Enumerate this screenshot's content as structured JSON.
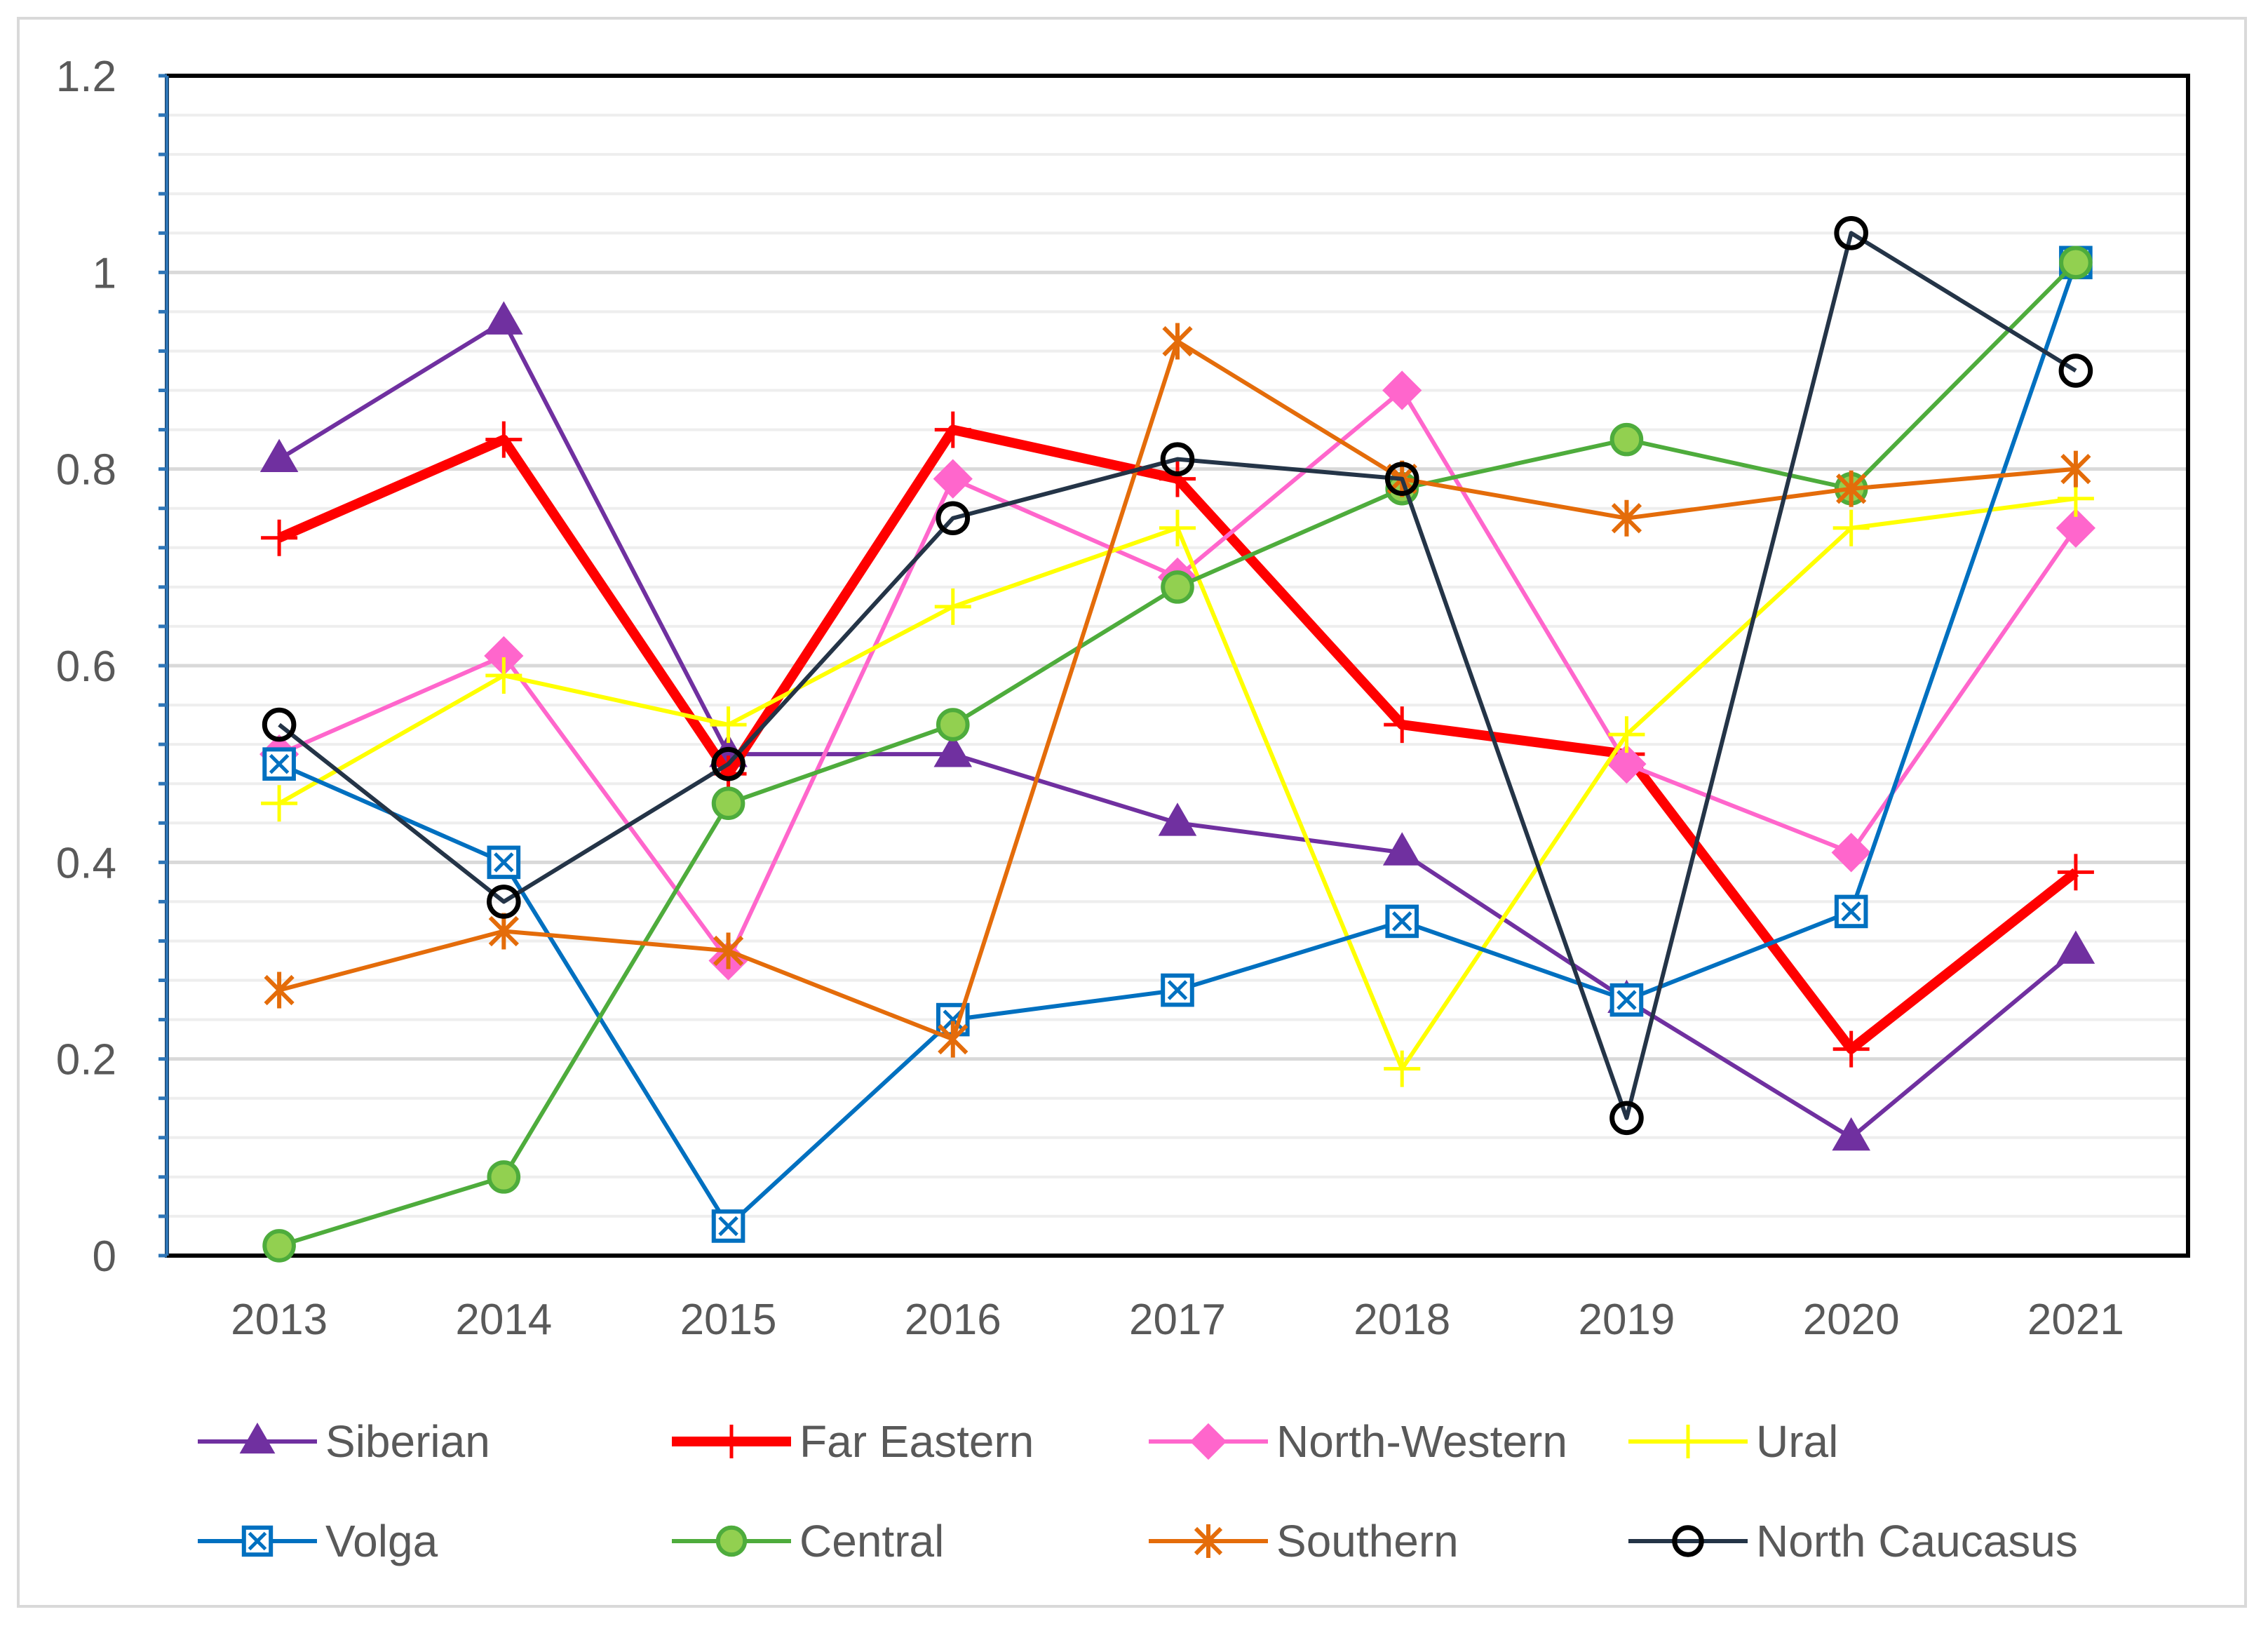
{
  "chart_data": {
    "type": "line",
    "title": "",
    "xlabel": "",
    "ylabel": "",
    "x": [
      "2013",
      "2014",
      "2015",
      "2016",
      "2017",
      "2018",
      "2019",
      "2020",
      "2021"
    ],
    "ylim": [
      0,
      1.2
    ],
    "yticks": [
      0,
      0.2,
      0.4,
      0.6,
      0.8,
      1,
      1.2
    ],
    "ytick_labels": [
      "0",
      "0.2",
      "0.4",
      "0.6",
      "0.8",
      "1",
      "1.2"
    ],
    "grid": true,
    "legend_position": "bottom",
    "series": [
      {
        "name": "Siberian",
        "color": "#7030a0",
        "marker": "triangle",
        "values": [
          0.81,
          0.95,
          0.51,
          0.51,
          0.44,
          0.41,
          0.26,
          0.12,
          0.31
        ]
      },
      {
        "name": "Far Eastern",
        "color": "#ff0000",
        "marker": "plus",
        "values": [
          0.73,
          0.83,
          0.49,
          0.84,
          0.79,
          0.54,
          0.51,
          0.21,
          0.39
        ]
      },
      {
        "name": "North-Western",
        "color": "#ff66cc",
        "marker": "diamond",
        "values": [
          0.51,
          0.61,
          0.3,
          0.79,
          0.69,
          0.88,
          0.5,
          0.41,
          0.74
        ]
      },
      {
        "name": "Ural",
        "color": "#ffff00",
        "marker": "plus",
        "values": [
          0.46,
          0.59,
          0.54,
          0.66,
          0.74,
          0.19,
          0.53,
          0.74,
          0.77
        ]
      },
      {
        "name": "Volga",
        "color": "#0070c0",
        "marker": "boxx",
        "values": [
          0.5,
          0.4,
          0.03,
          0.24,
          0.27,
          0.34,
          0.26,
          0.35,
          1.01
        ]
      },
      {
        "name": "Central",
        "color": "#4eac3c",
        "marker": "circlefill",
        "values": [
          0.01,
          0.08,
          0.46,
          0.54,
          0.68,
          0.78,
          0.83,
          0.78,
          1.01
        ]
      },
      {
        "name": "Southern",
        "color": "#e46c0a",
        "marker": "star",
        "values": [
          0.27,
          0.33,
          0.31,
          0.22,
          0.93,
          0.79,
          0.75,
          0.78,
          0.8
        ]
      },
      {
        "name": "North Caucasus",
        "color": "#243447",
        "marker": "circleopen",
        "values": [
          0.54,
          0.36,
          0.5,
          0.75,
          0.81,
          0.79,
          0.14,
          1.04,
          0.9
        ]
      }
    ]
  }
}
